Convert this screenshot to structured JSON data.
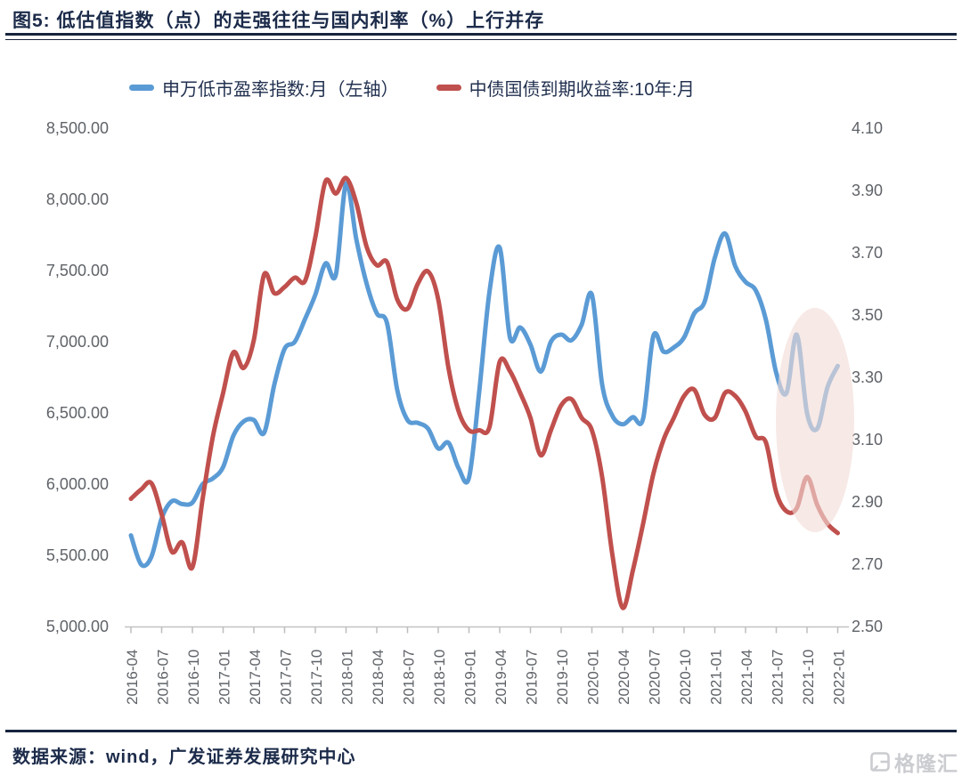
{
  "figure": {
    "title": "图5:  低估值指数（点）的走强往往与国内利率（%）上行并存"
  },
  "footer": {
    "source": "数据来源：wind，广发证券发展研究中心",
    "logo_text": "格隆汇"
  },
  "chart_data": {
    "type": "line",
    "frequency": "monthly",
    "x_start": "2016-04",
    "x_end": "2022-01",
    "x_tick_labels": [
      "2016-04",
      "2016-07",
      "2016-10",
      "2017-01",
      "2017-04",
      "2017-07",
      "2017-10",
      "2018-01",
      "2018-04",
      "2018-07",
      "2018-10",
      "2019-01",
      "2019-04",
      "2019-07",
      "2019-10",
      "2020-01",
      "2020-04",
      "2020-07",
      "2020-10",
      "2021-01",
      "2021-04",
      "2021-07",
      "2021-10",
      "2022-01"
    ],
    "left_axis": {
      "min": 5000,
      "max": 8500,
      "tick_labels": [
        "8,500.00",
        "8,000.00",
        "7,500.00",
        "7,000.00",
        "6,500.00",
        "6,000.00",
        "5,500.00",
        "5,000.00"
      ]
    },
    "right_axis": {
      "min": 2.5,
      "max": 4.1,
      "tick_labels": [
        "4.10",
        "3.90",
        "3.70",
        "3.50",
        "3.30",
        "3.10",
        "2.90",
        "2.70",
        "2.50"
      ]
    },
    "series": [
      {
        "name": "申万低市盈率指数:月（左轴）",
        "axis": "left",
        "color": "#5B9BD5",
        "values": [
          5640,
          5435,
          5490,
          5760,
          5880,
          5860,
          5870,
          6000,
          6040,
          6120,
          6340,
          6440,
          6450,
          6360,
          6700,
          6950,
          7000,
          7160,
          7330,
          7550,
          7470,
          8110,
          7720,
          7410,
          7200,
          7130,
          6660,
          6450,
          6430,
          6390,
          6250,
          6290,
          6110,
          6045,
          6650,
          7350,
          7660,
          7030,
          7100,
          6980,
          6790,
          7000,
          7050,
          7010,
          7120,
          7330,
          6700,
          6480,
          6420,
          6470,
          6460,
          7040,
          6930,
          6960,
          7030,
          7200,
          7280,
          7590,
          7760,
          7530,
          7420,
          7360,
          7150,
          6780,
          6640,
          7050,
          6500,
          6390,
          6680,
          6830
        ]
      },
      {
        "name": "中债国债到期收益率:10年:月",
        "axis": "right",
        "color": "#C0504D",
        "values": [
          2.91,
          2.94,
          2.96,
          2.86,
          2.74,
          2.77,
          2.69,
          2.91,
          3.11,
          3.25,
          3.38,
          3.33,
          3.42,
          3.63,
          3.57,
          3.59,
          3.62,
          3.61,
          3.75,
          3.93,
          3.89,
          3.94,
          3.86,
          3.72,
          3.66,
          3.67,
          3.55,
          3.52,
          3.6,
          3.64,
          3.55,
          3.33,
          3.19,
          3.13,
          3.13,
          3.14,
          3.35,
          3.32,
          3.25,
          3.17,
          3.05,
          3.13,
          3.21,
          3.23,
          3.17,
          3.13,
          2.98,
          2.73,
          2.56,
          2.68,
          2.83,
          2.99,
          3.1,
          3.17,
          3.24,
          3.26,
          3.18,
          3.17,
          3.25,
          3.24,
          3.19,
          3.11,
          3.09,
          2.93,
          2.87,
          2.88,
          2.98,
          2.89,
          2.83,
          2.8
        ]
      }
    ],
    "highlight_ellipse": {
      "center_x_month": "2021-11",
      "color": "#f2dcd7",
      "opacity": 0.62
    },
    "grid": "off",
    "legend_position": "top"
  }
}
